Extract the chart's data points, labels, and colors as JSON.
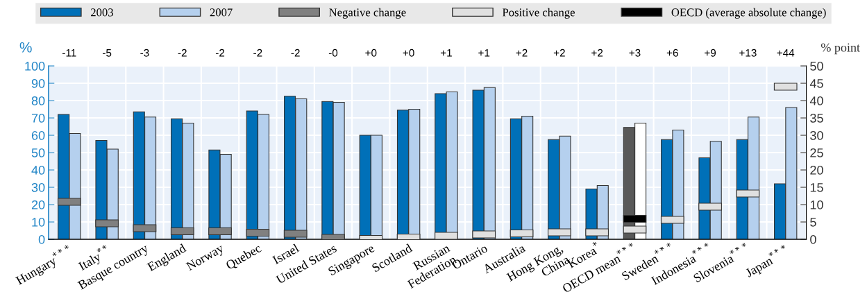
{
  "chart_data": {
    "type": "bar",
    "categories": [
      "Hungary$^{***}$",
      "Italy$^{**}$",
      "Basque country",
      "England",
      "Norway",
      "Quebec",
      "Israel",
      "United States",
      "Singapore",
      "Scotland",
      "Russian\nFederation",
      "Ontario",
      "Australia",
      "Hong Kong,\nChina",
      "Korea$^{*}$",
      "OECD mean$^{***}$",
      "Sweden$^{***}$",
      "Indonesia$^{***}$",
      "Slovenia$^{***}$",
      "Japan$^{***}$"
    ],
    "series": [
      {
        "name": "2003",
        "color": "#0070b8",
        "colors": [
          "#0070b8",
          "#0070b8",
          "#0070b8",
          "#0070b8",
          "#0070b8",
          "#0070b8",
          "#0070b8",
          "#0070b8",
          "#0070b8",
          "#0070b8",
          "#0070b8",
          "#0070b8",
          "#0070b8",
          "#0070b8",
          "#0070b8",
          "#595959",
          "#0070b8",
          "#0070b8",
          "#0070b8",
          "#0070b8"
        ],
        "values": [
          72,
          57,
          73.5,
          69.5,
          51.5,
          74,
          82.5,
          79.5,
          60,
          74.5,
          84,
          86,
          69.5,
          57.5,
          29,
          64.5,
          57.5,
          47,
          57.5,
          32
        ]
      },
      {
        "name": "2007",
        "color": "#b5d0ee",
        "colors": [
          "#b5d0ee",
          "#b5d0ee",
          "#b5d0ee",
          "#b5d0ee",
          "#b5d0ee",
          "#b5d0ee",
          "#b5d0ee",
          "#b5d0ee",
          "#b5d0ee",
          "#b5d0ee",
          "#b5d0ee",
          "#b5d0ee",
          "#b5d0ee",
          "#b5d0ee",
          "#b5d0ee",
          "#ffffff",
          "#b5d0ee",
          "#b5d0ee",
          "#b5d0ee",
          "#b5d0ee"
        ],
        "values": [
          61,
          52,
          70.5,
          67,
          49,
          72,
          81,
          79,
          60,
          75,
          85,
          87.5,
          71,
          59.5,
          31,
          67,
          63,
          56.5,
          70.5,
          76
        ]
      },
      {
        "name": "Negative change",
        "type": "scatter",
        "color": "#808080",
        "axis": "y2",
        "values": [
          10.8,
          4.6,
          3.2,
          2.3,
          2.3,
          1.9,
          1.6,
          0.4,
          null,
          null,
          null,
          null,
          null,
          null,
          null,
          null,
          null,
          null,
          null,
          null
        ]
      },
      {
        "name": "Positive change",
        "type": "scatter",
        "color": "#e0e0e0",
        "axis": "y2",
        "values": [
          null,
          null,
          null,
          null,
          null,
          null,
          null,
          null,
          0.1,
          0.5,
          1.0,
          1.4,
          1.7,
          2.0,
          2.0,
          2.8,
          5.6,
          9.4,
          13.2,
          44
        ]
      },
      {
        "name": "OECD (average absolute change)",
        "type": "scatter",
        "color": "#000000",
        "axis": "y2",
        "values": [
          null,
          null,
          null,
          null,
          null,
          null,
          null,
          null,
          null,
          null,
          null,
          null,
          null,
          null,
          null,
          5.9,
          null,
          null,
          null,
          null
        ]
      }
    ],
    "annotations": [
      "-11",
      "-5",
      "-3",
      "-2",
      "-2",
      "-2",
      "-2",
      "-0",
      "+0",
      "+0",
      "+1",
      "+1",
      "+2",
      "+2",
      "+2",
      "+3",
      "+6",
      "+9",
      "+13",
      "+44"
    ],
    "ylabel": "%",
    "y2label": "% point",
    "ylim": [
      0,
      100
    ],
    "yticks": [
      0,
      10,
      20,
      30,
      40,
      50,
      60,
      70,
      80,
      90,
      100
    ],
    "y2lim": [
      0,
      50
    ],
    "y2ticks": [
      0,
      5,
      10,
      15,
      20,
      25,
      30,
      35,
      40,
      45,
      50
    ],
    "grid": true,
    "legend": "top"
  }
}
